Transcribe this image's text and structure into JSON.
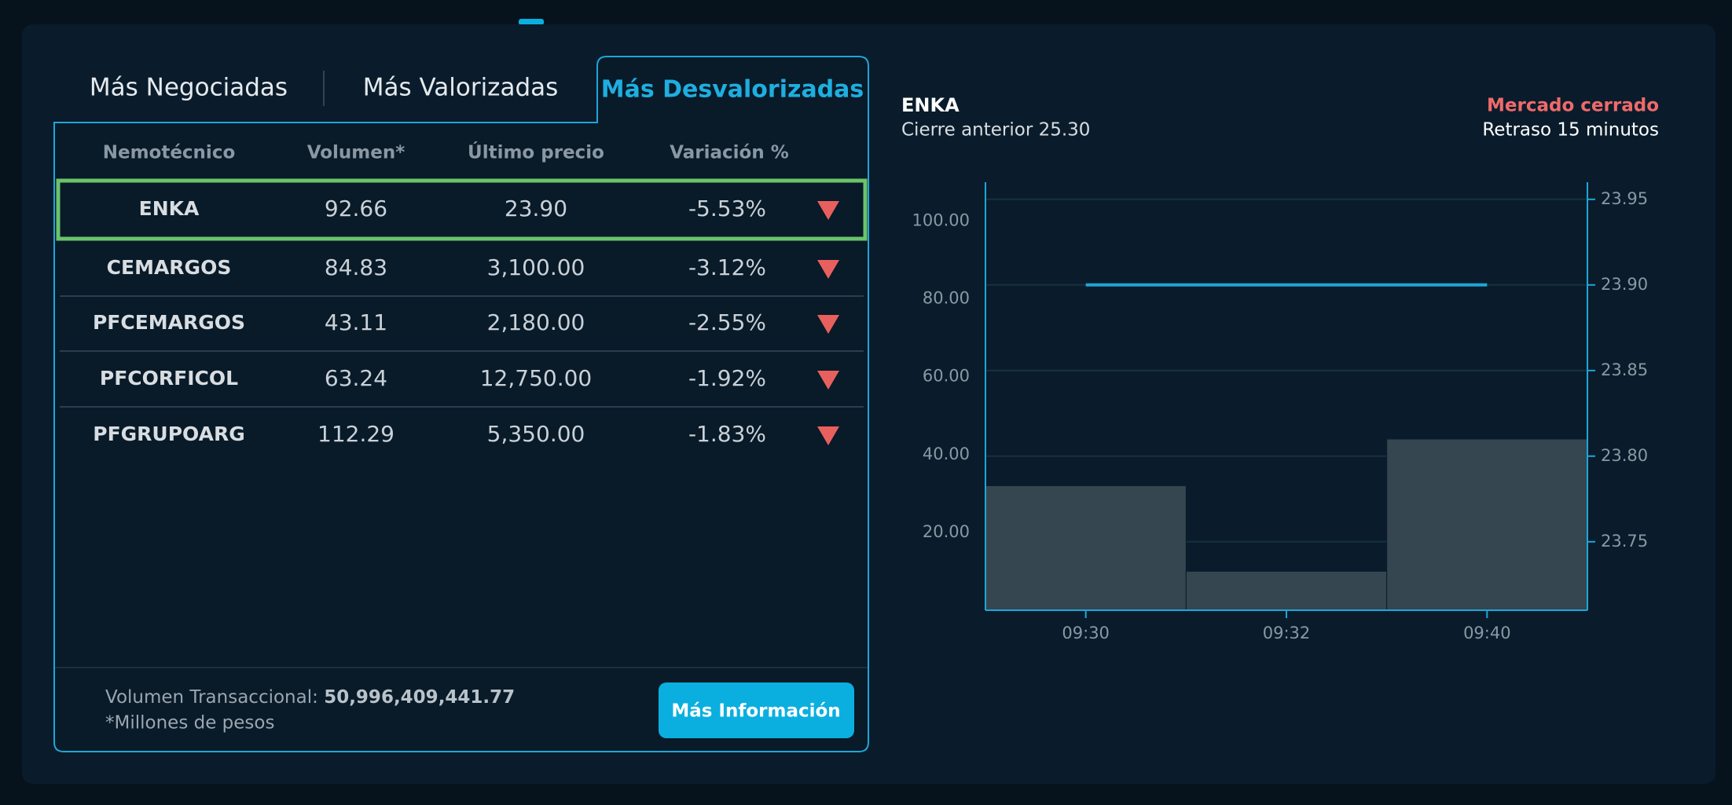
{
  "tabs": [
    "Más Negociadas",
    "Más Valorizadas",
    "Más Desvalorizadas"
  ],
  "table": {
    "headers": [
      "Nemotécnico",
      "Volumen*",
      "Último precio",
      "Variación %"
    ],
    "rows": [
      [
        "ENKA",
        "92.66",
        "23.90",
        "-5.53%"
      ],
      [
        "CEMARGOS",
        "84.83",
        "3,100.00",
        "-3.12%"
      ],
      [
        "PFCEMARGOS",
        "43.11",
        "2,180.00",
        "-2.55%"
      ],
      [
        "PFCORFICOL",
        "63.24",
        "12,750.00",
        "-1.92%"
      ],
      [
        "PFGRUPOARG",
        "112.29",
        "5,350.00",
        "-1.83%"
      ]
    ]
  },
  "footer": {
    "volume_label": "Volumen Transaccional:",
    "volume_value": "50,996,409,441.77",
    "note": "*Millones de pesos"
  },
  "button": "Más Información",
  "market": {
    "status": "Mercado cerrado",
    "delay": "Retraso 15 minutos"
  },
  "chart_data": {
    "type": "bar",
    "title": "ENKA",
    "subtitle": "Cierre anterior 25.30",
    "categories": [
      "09:30",
      "09:32",
      "09:40"
    ],
    "series": [
      {
        "type": "bar",
        "color": "#364651",
        "values": [
          32,
          10,
          44
        ]
      },
      {
        "type": "line",
        "axis": "y2",
        "color": "#1ea6d8",
        "values": [
          23.9,
          23.9,
          23.9
        ]
      }
    ],
    "ylim": [
      0,
      110
    ],
    "yticks": [
      {
        "value": 20,
        "label": "20.00"
      },
      {
        "value": 40,
        "label": "40.00"
      },
      {
        "value": 60,
        "label": "60.00"
      },
      {
        "value": 80,
        "label": "80.00"
      },
      {
        "value": 100,
        "label": "100.00"
      }
    ],
    "y2lim": [
      23.71,
      23.96
    ],
    "y2ticks": [
      23.75,
      {
        "value": 23.8,
        "label": "23.80"
      },
      23.85,
      {
        "value": 23.9,
        "label": "23.90"
      },
      23.95
    ],
    "grid": true
  }
}
